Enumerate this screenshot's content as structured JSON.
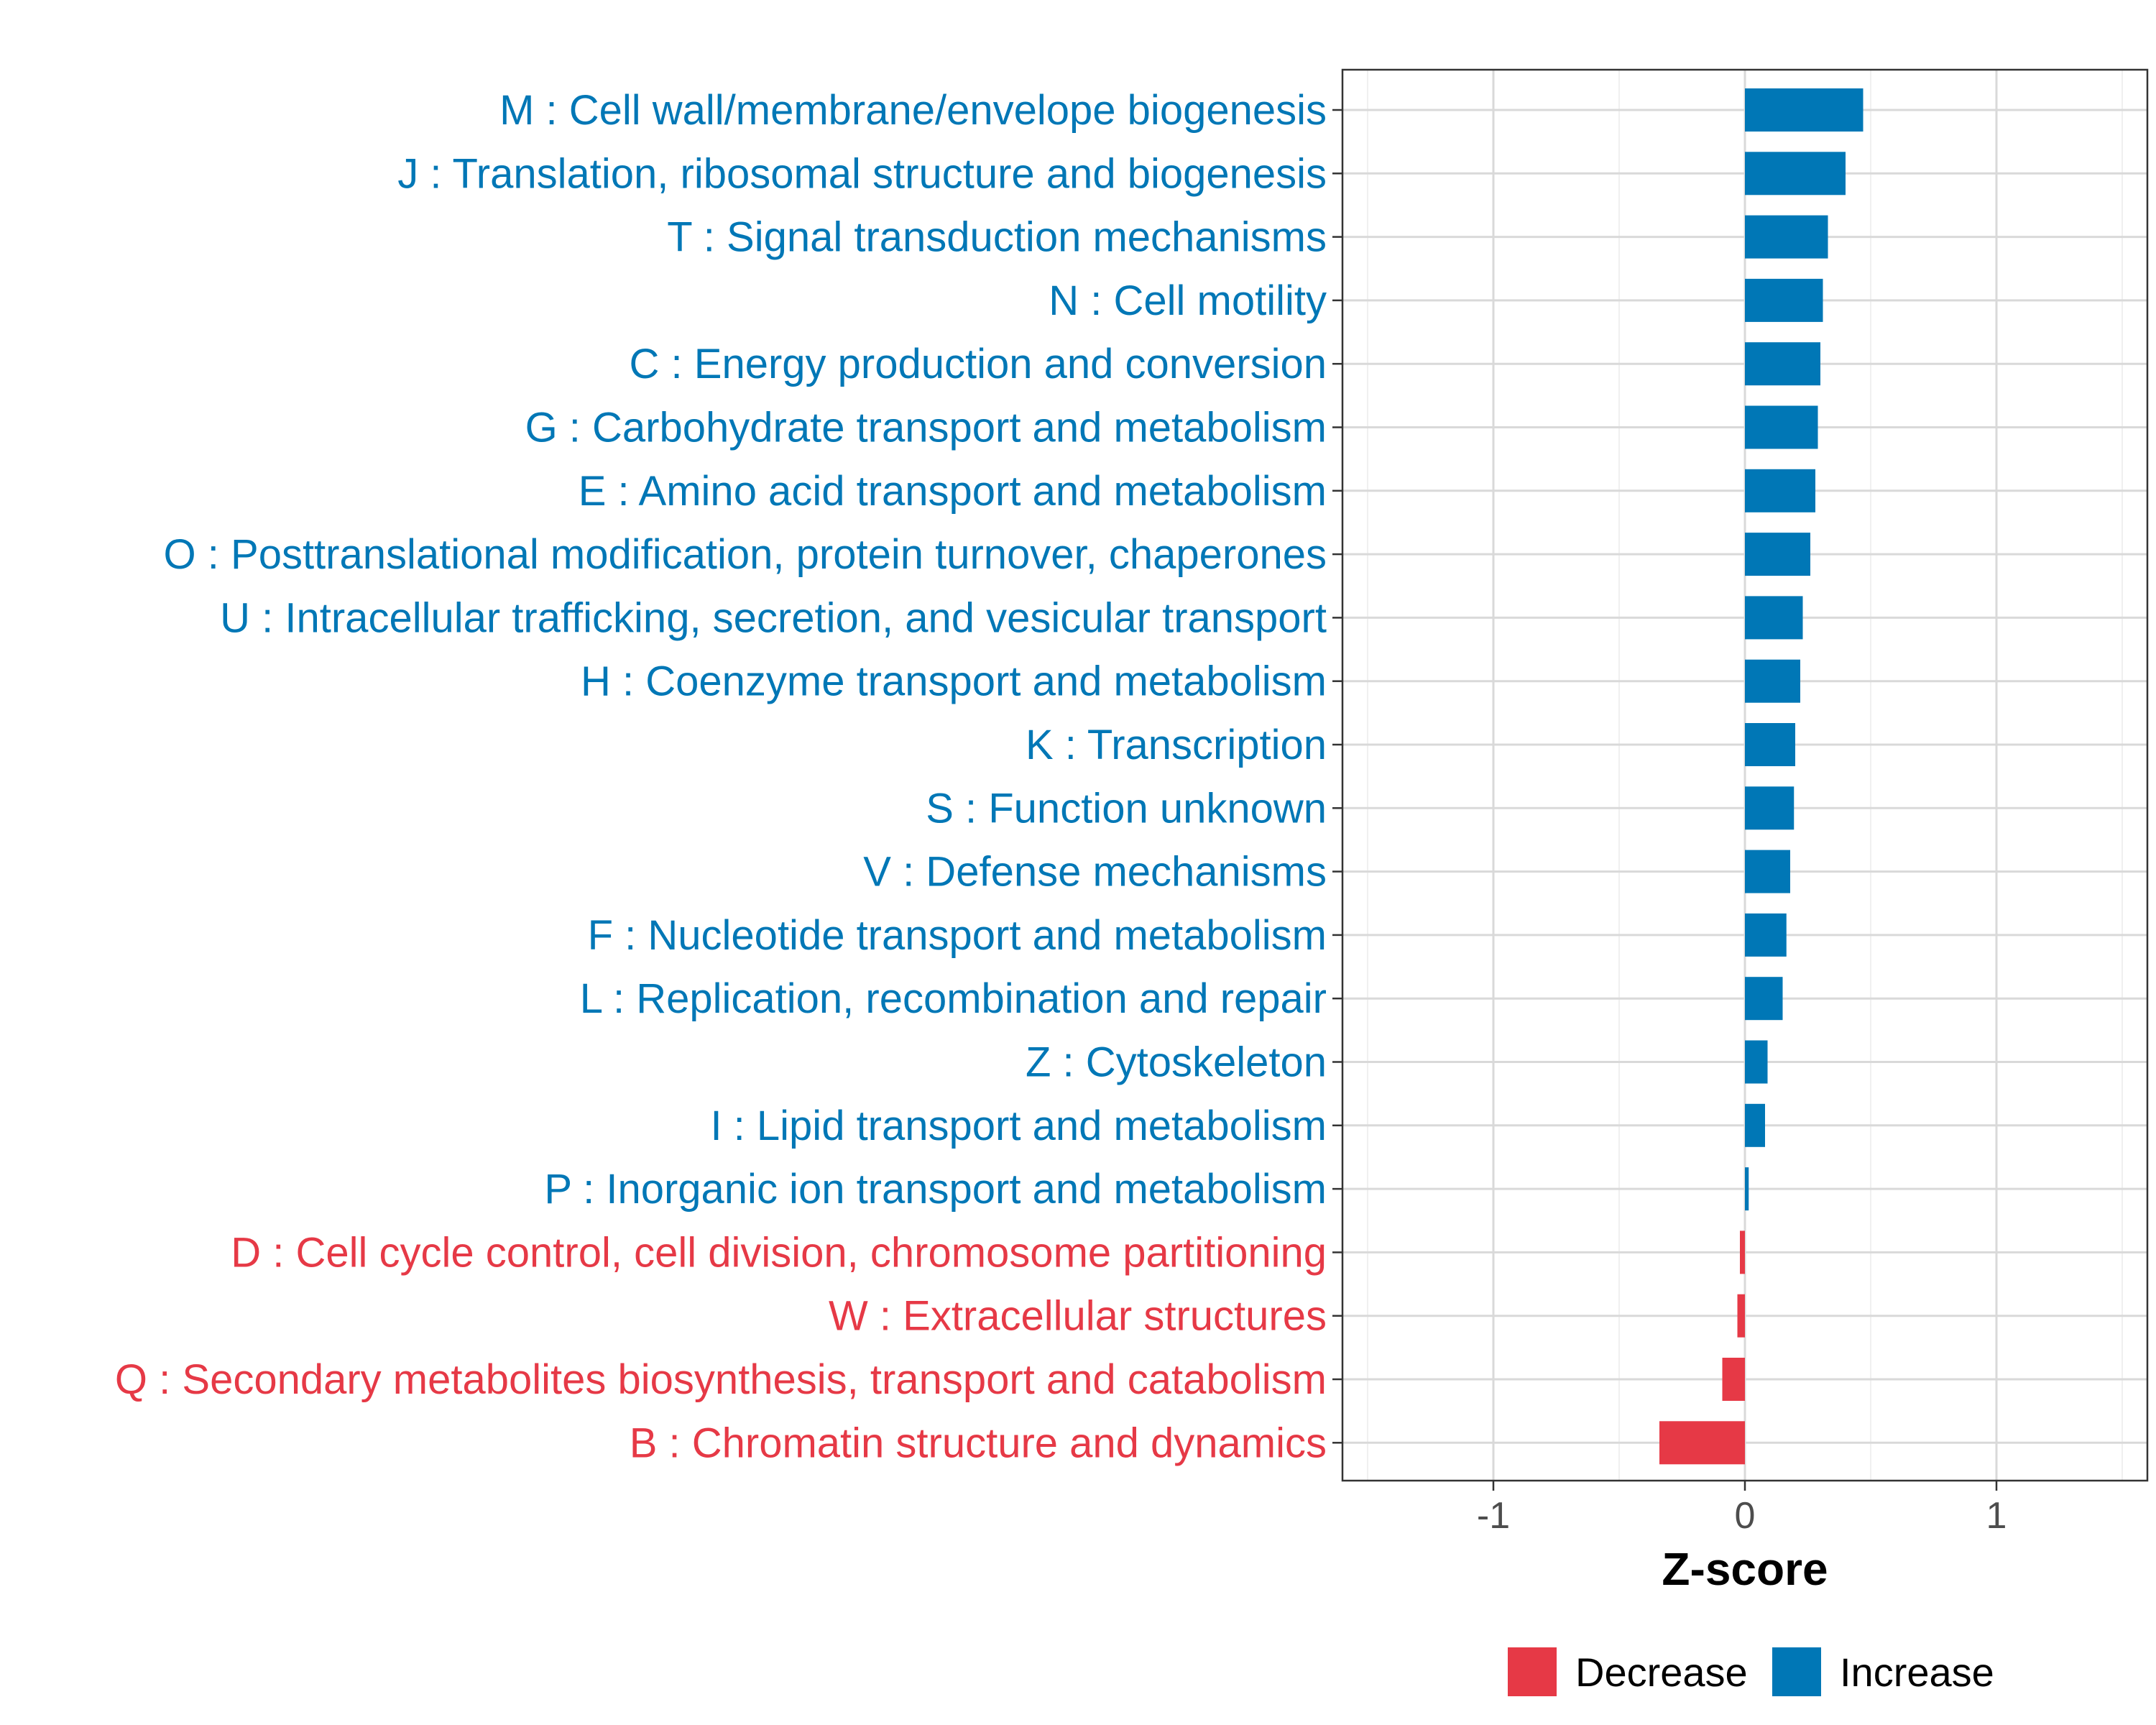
{
  "chart_data": {
    "type": "bar",
    "orientation": "horizontal",
    "title": "",
    "xlabel": "Z-score",
    "ylabel": "",
    "xlim": [
      -1.6,
      1.6
    ],
    "xticks": [
      -1,
      0,
      1
    ],
    "xtick_labels": [
      "-1",
      "0",
      "1"
    ],
    "grid": true,
    "categories": [
      "M : Cell wall/membrane/envelope biogenesis",
      "J : Translation, ribosomal structure and biogenesis",
      "T : Signal transduction mechanisms",
      "N : Cell motility",
      "C : Energy production and conversion",
      "G : Carbohydrate transport and metabolism",
      "E : Amino acid transport and metabolism",
      "O : Posttranslational modification, protein turnover, chaperones",
      "U : Intracellular trafficking, secretion, and vesicular transport",
      "H : Coenzyme transport and metabolism",
      "K : Transcription",
      "S : Function unknown",
      "V : Defense mechanisms",
      "F : Nucleotide transport and metabolism",
      "L : Replication, recombination and repair",
      "Z : Cytoskeleton",
      "I : Lipid transport and metabolism",
      "P : Inorganic ion transport and metabolism",
      "D : Cell cycle control, cell division, chromosome partitioning",
      "W : Extracellular structures",
      "Q : Secondary metabolites biosynthesis, transport and catabolism",
      "B : Chromatin structure and dynamics"
    ],
    "values": [
      0.47,
      0.4,
      0.33,
      0.31,
      0.3,
      0.29,
      0.28,
      0.26,
      0.23,
      0.22,
      0.2,
      0.195,
      0.18,
      0.165,
      0.15,
      0.09,
      0.08,
      0.015,
      -0.02,
      -0.03,
      -0.09,
      -0.34
    ],
    "groups": [
      "Increase",
      "Increase",
      "Increase",
      "Increase",
      "Increase",
      "Increase",
      "Increase",
      "Increase",
      "Increase",
      "Increase",
      "Increase",
      "Increase",
      "Increase",
      "Increase",
      "Increase",
      "Increase",
      "Increase",
      "Increase",
      "Decrease",
      "Decrease",
      "Decrease",
      "Decrease"
    ],
    "legend": {
      "position": "bottom",
      "entries": [
        {
          "name": "Decrease",
          "color": "#E63946"
        },
        {
          "name": "Increase",
          "color": "#0077B6"
        }
      ]
    },
    "colors": {
      "Decrease": "#E63946",
      "Increase": "#0077B6"
    }
  }
}
